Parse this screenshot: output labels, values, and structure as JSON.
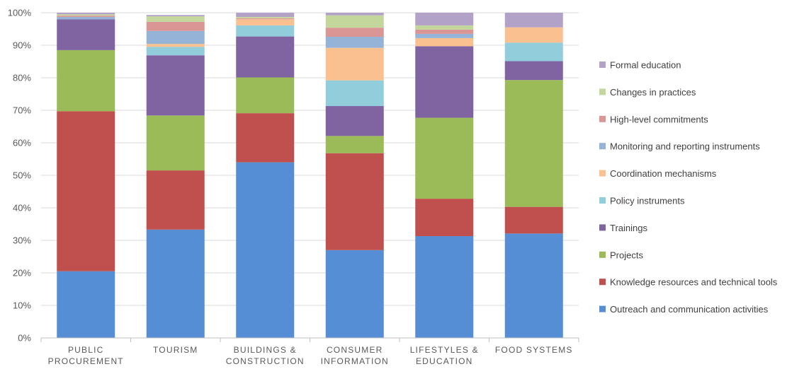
{
  "chart_data": {
    "type": "bar",
    "stacked": true,
    "percent": true,
    "title": "",
    "xlabel": "",
    "ylabel": "",
    "ylim": [
      0,
      100
    ],
    "yticks": [
      "0%",
      "10%",
      "20%",
      "30%",
      "40%",
      "50%",
      "60%",
      "70%",
      "80%",
      "90%",
      "100%"
    ],
    "grid": true,
    "legend_position": "right",
    "categories": [
      [
        "PUBLIC",
        "PROCUREMENT"
      ],
      [
        "TOURISM"
      ],
      [
        "BUILDINGS &",
        "CONSTRUCTION"
      ],
      [
        "CONSUMER",
        "INFORMATION"
      ],
      [
        "LIFESTYLES &",
        "EDUCATION"
      ],
      [
        "FOOD SYSTEMS"
      ]
    ],
    "series": [
      {
        "name": "Outreach and communication activities",
        "color": "#558ED5",
        "values": [
          20.5,
          33.3,
          54.0,
          27.0,
          31.3,
          32.1
        ]
      },
      {
        "name": "Knowledge resources and technical tools",
        "color": "#C0504D",
        "values": [
          49.2,
          18.2,
          15.1,
          29.8,
          11.5,
          8.2
        ]
      },
      {
        "name": "Projects",
        "color": "#9BBB59",
        "values": [
          18.8,
          16.9,
          11.0,
          5.3,
          24.9,
          39.0
        ]
      },
      {
        "name": "Trainings",
        "color": "#8064A2",
        "values": [
          9.5,
          18.5,
          12.6,
          9.2,
          22.0,
          5.8
        ]
      },
      {
        "name": "Policy instruments",
        "color": "#92CDDC",
        "values": [
          0.0,
          2.6,
          3.4,
          7.9,
          0.0,
          5.7
        ]
      },
      {
        "name": "Coordination mechanisms",
        "color": "#FAC090",
        "values": [
          0.0,
          0.9,
          1.9,
          10.0,
          2.5,
          4.7
        ]
      },
      {
        "name": "Monitoring and reporting instruments",
        "color": "#95B3D7",
        "values": [
          0.7,
          4.0,
          0.0,
          3.4,
          1.3,
          0.0
        ]
      },
      {
        "name": "High-level commitments",
        "color": "#D99694",
        "values": [
          0.4,
          2.8,
          0.3,
          2.8,
          1.3,
          0.0
        ]
      },
      {
        "name": "Changes in practices",
        "color": "#C3D69B",
        "values": [
          0.4,
          1.7,
          0.4,
          3.8,
          1.3,
          0.0
        ]
      },
      {
        "name": "Formal education",
        "color": "#B3A2C7",
        "values": [
          0.5,
          0.4,
          1.3,
          0.8,
          3.9,
          4.5
        ]
      }
    ]
  }
}
